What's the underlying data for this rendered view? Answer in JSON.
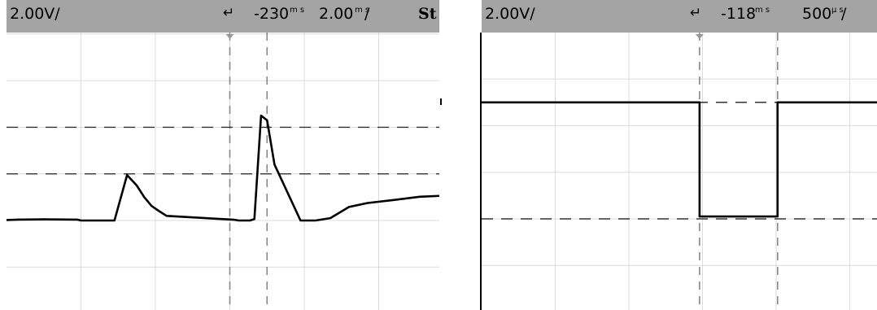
{
  "scopes": [
    {
      "scale_volts": "2.00V/",
      "trigger_icon": "trigger-arrow-icon",
      "time_offset": "-230",
      "time_offset_unit": "m s",
      "time_scale": "2.00",
      "time_scale_unit": "m s",
      "time_scale_suffix": "/",
      "status": "St"
    },
    {
      "scale_volts": "2.00V/",
      "trigger_icon": "trigger-arrow-icon",
      "time_offset": "-118",
      "time_offset_unit": "m s",
      "time_scale": "500",
      "time_scale_unit": "µ s",
      "time_scale_suffix": "/"
    }
  ],
  "chart_data": [
    {
      "type": "line",
      "x_divisions": 6,
      "y_divisions": 6,
      "grid": true,
      "x": [
        0,
        0.15,
        0.5,
        0.95,
        1.0,
        1.05,
        1.12,
        1.22,
        1.45,
        1.62,
        1.75,
        1.85,
        1.95,
        2.05,
        2.15,
        3.06,
        3.12,
        3.2,
        3.27,
        3.33,
        3.42,
        3.5,
        3.6,
        3.95,
        4.08,
        4.15,
        4.35,
        4.6,
        4.85,
        5.2,
        5.55,
        5.85,
        6.0
      ],
      "y": [
        0.02,
        0.04,
        0.05,
        0.04,
        0.0,
        0.0,
        0.0,
        0.0,
        0.0,
        1.95,
        1.5,
        1.0,
        0.62,
        0.4,
        0.2,
        0.03,
        0.0,
        0.0,
        0.0,
        0.06,
        4.5,
        4.3,
        2.4,
        0.0,
        0.0,
        0.0,
        0.1,
        0.58,
        0.75,
        0.88,
        1.02,
        1.06,
        1.02
      ],
      "vertical_markers_div": [
        3.0,
        3.5
      ],
      "horizontal_markers_div": [
        4.0,
        2.0
      ],
      "trigger_marker_div": 3.0
    },
    {
      "type": "line",
      "x_divisions": 6,
      "y_divisions": 6,
      "grid": true,
      "x": [
        0,
        2.96,
        2.96,
        4.02,
        4.02,
        5.0,
        6.0
      ],
      "y": [
        5.0,
        5.0,
        0.1,
        0.1,
        5.0,
        5.0,
        5.0
      ],
      "vertical_markers_div": [
        2.96,
        4.02
      ],
      "horizontal_markers_div": [
        5.0,
        0.0
      ],
      "trigger_marker_div": 2.96
    }
  ]
}
